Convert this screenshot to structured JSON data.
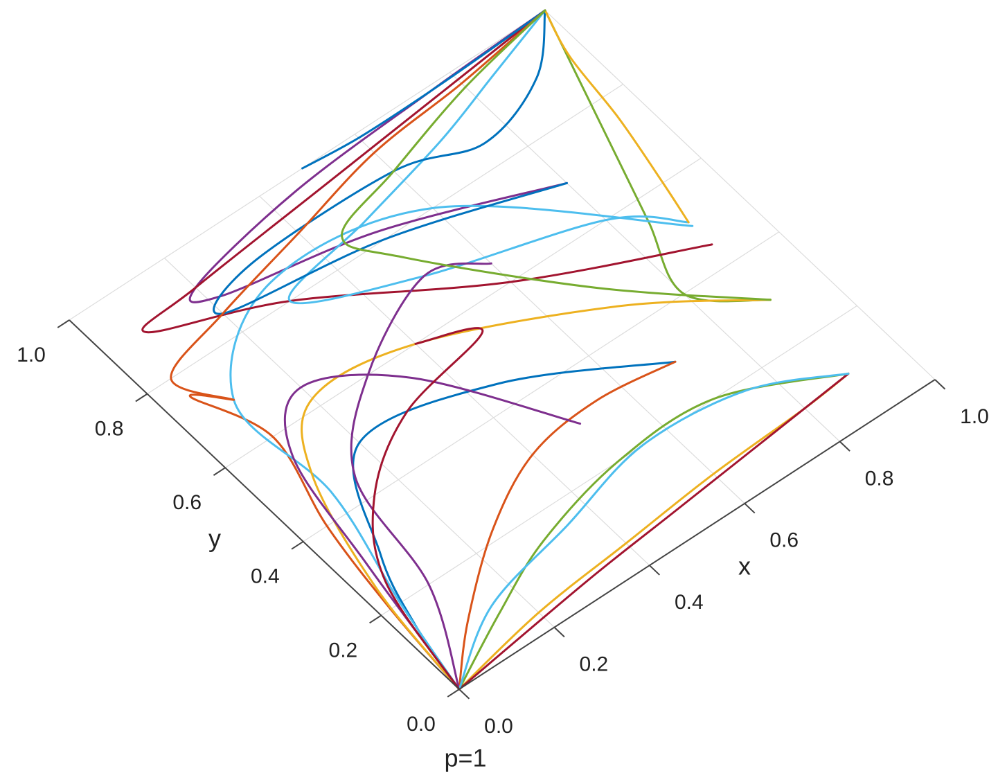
{
  "chart_data": {
    "type": "line",
    "title": "p=1",
    "xlabel": "x",
    "ylabel": "y",
    "xlim": [
      0,
      1
    ],
    "ylim": [
      0,
      1
    ],
    "xticks": [
      {
        "value": 0,
        "label": "0.0"
      },
      {
        "value": 0.2,
        "label": "0.2"
      },
      {
        "value": 0.4,
        "label": "0.4"
      },
      {
        "value": 0.6,
        "label": "0.6"
      },
      {
        "value": 0.8,
        "label": "0.8"
      },
      {
        "value": 1,
        "label": "1.0"
      }
    ],
    "yticks": [
      {
        "value": 0,
        "label": "0.0"
      },
      {
        "value": 0.2,
        "label": "0.2"
      },
      {
        "value": 0.4,
        "label": "0.4"
      },
      {
        "value": 0.6,
        "label": "0.6"
      },
      {
        "value": 0.8,
        "label": "0.8"
      },
      {
        "value": 1,
        "label": "1.0"
      }
    ],
    "grid": true,
    "series": [
      {
        "color": "#0072BD",
        "x": [
          0,
          0.03,
          0.08,
          0.2,
          0.45,
          0.7
        ],
        "values": [
          0,
          0.15,
          0.3,
          0.5,
          0.45,
          0.3
        ]
      },
      {
        "color": "#D95319",
        "x": [
          0,
          0.02,
          0.05,
          0.1,
          0.05,
          0.1
        ],
        "values": [
          0,
          0.2,
          0.4,
          0.6,
          0.75,
          0.7
        ]
      },
      {
        "color": "#EDB120",
        "x": [
          0,
          0.2,
          0.4,
          0.6,
          0.8,
          0.9
        ],
        "values": [
          0,
          0.04,
          0.06,
          0.08,
          0.09,
          0.1
        ]
      },
      {
        "color": "#7E2F8E",
        "x": [
          1,
          0.75,
          0.45,
          0.2,
          0.22,
          0.5,
          0.8
        ],
        "values": [
          1,
          0.99,
          0.97,
          0.92,
          0.88,
          0.82,
          0.7
        ]
      },
      {
        "color": "#77AC30",
        "x": [
          1,
          0.95,
          0.9,
          0.85,
          0.8,
          0.9
        ],
        "values": [
          1,
          0.85,
          0.7,
          0.55,
          0.4,
          0.3
        ]
      },
      {
        "color": "#4DBEEE",
        "x": [
          0,
          0.04,
          0.1,
          0.1,
          0.3,
          0.6,
          0.9
        ],
        "values": [
          0,
          0.2,
          0.45,
          0.7,
          0.85,
          0.8,
          0.5
        ]
      },
      {
        "color": "#A2142F",
        "x": [
          1,
          0.8,
          0.5,
          0.2,
          0.08,
          0.3,
          0.6,
          0.9
        ],
        "values": [
          1,
          0.98,
          0.95,
          0.92,
          0.9,
          0.8,
          0.6,
          0.45
        ]
      },
      {
        "color": "#0072BD",
        "x": [
          0.49,
          0.6,
          0.75,
          0.9,
          1
        ],
        "values": [
          1,
          0.99,
          0.99,
          0.995,
          1
        ]
      },
      {
        "color": "#D95319",
        "x": [
          0,
          0.1,
          0.25,
          0.4,
          0.55,
          0.7
        ],
        "values": [
          0,
          0.1,
          0.22,
          0.3,
          0.32,
          0.3
        ]
      },
      {
        "color": "#EDB120",
        "x": [
          0,
          0.03,
          0.1,
          0.2,
          0.4,
          0.7,
          0.9
        ],
        "values": [
          0,
          0.25,
          0.5,
          0.62,
          0.6,
          0.45,
          0.3
        ]
      },
      {
        "color": "#7E2F8E",
        "x": [
          0,
          0.05,
          0.1,
          0.2,
          0.35,
          0.5
        ],
        "values": [
          0,
          0.3,
          0.55,
          0.65,
          0.55,
          0.3
        ]
      },
      {
        "color": "#77AC30",
        "x": [
          0,
          0.15,
          0.3,
          0.5,
          0.7,
          0.9
        ],
        "values": [
          0,
          0.08,
          0.15,
          0.2,
          0.2,
          0.1
        ]
      },
      {
        "color": "#4DBEEE",
        "x": [
          1,
          0.85,
          0.7,
          0.5,
          0.3,
          0.5,
          0.8,
          0.9
        ],
        "values": [
          1,
          0.95,
          0.9,
          0.85,
          0.8,
          0.7,
          0.6,
          0.51
        ]
      },
      {
        "color": "#A2142F",
        "x": [
          0,
          0.3,
          0.5,
          0.7,
          0.9
        ],
        "values": [
          0,
          0.04,
          0.06,
          0.08,
          0.1
        ]
      },
      {
        "color": "#0072BD",
        "x": [
          1,
          0.9,
          0.75,
          0.6,
          0.3,
          0.2,
          0.5,
          0.8
        ],
        "values": [
          1,
          0.9,
          0.85,
          0.9,
          0.9,
          0.85,
          0.8,
          0.7
        ]
      },
      {
        "color": "#D95319",
        "x": [
          1,
          0.8,
          0.6,
          0.4,
          0.2,
          0.05,
          0.1
        ],
        "values": [
          1,
          0.97,
          0.95,
          0.9,
          0.85,
          0.8,
          0.7
        ]
      },
      {
        "color": "#EDB120",
        "x": [
          1,
          0.97,
          0.95,
          0.92,
          0.9
        ],
        "values": [
          1,
          0.9,
          0.75,
          0.6,
          0.51
        ]
      },
      {
        "color": "#7E2F8E",
        "x": [
          0,
          0.1,
          0.15,
          0.3,
          0.5,
          0.6
        ],
        "values": [
          0,
          0.2,
          0.45,
          0.6,
          0.7,
          0.65
        ]
      },
      {
        "color": "#77AC30",
        "x": [
          1,
          0.8,
          0.6,
          0.45,
          0.5,
          0.7,
          0.9
        ],
        "values": [
          1,
          0.96,
          0.9,
          0.85,
          0.75,
          0.5,
          0.3
        ]
      },
      {
        "color": "#4DBEEE",
        "x": [
          0,
          0.15,
          0.35,
          0.55,
          0.75,
          0.9
        ],
        "values": [
          0,
          0.1,
          0.15,
          0.2,
          0.18,
          0.1
        ]
      },
      {
        "color": "#A2142F",
        "x": [
          0,
          0.05,
          0.15,
          0.3,
          0.5,
          0.4
        ],
        "values": [
          0,
          0.25,
          0.4,
          0.5,
          0.55,
          0.6
        ]
      }
    ]
  }
}
